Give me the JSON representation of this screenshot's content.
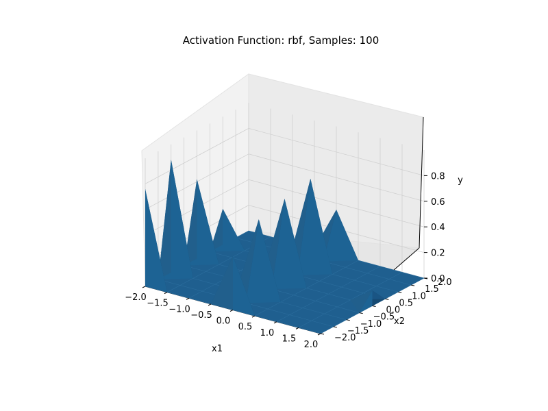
{
  "chart_data": {
    "type": "surface3d",
    "title": "Activation Function: rbf, Samples: 100",
    "xlabel": "x1",
    "ylabel": "x2",
    "zlabel": "y",
    "x_ticks": [
      "−2.0",
      "−1.5",
      "−1.0",
      "−0.5",
      "0.0",
      "0.5",
      "1.0",
      "1.5",
      "2.0"
    ],
    "y_ticks": [
      "−2.0",
      "−1.5",
      "−1.0",
      "−0.5",
      "0.0",
      "0.5",
      "1.0",
      "1.5",
      "2.0"
    ],
    "z_ticks": [
      "0.0",
      "0.2",
      "0.4",
      "0.6",
      "0.8"
    ],
    "xlim": [
      -2.0,
      2.0
    ],
    "ylim": [
      -2.0,
      2.0
    ],
    "zlim": [
      0.0,
      1.0
    ],
    "surface_color": "#1f5f8f",
    "grid": true,
    "peaks": [
      {
        "x1": -2.0,
        "x2": -2.0,
        "y": 0.76
      },
      {
        "x1": -2.0,
        "x2": -1.0,
        "y": 0.88
      },
      {
        "x1": -2.0,
        "x2": 0.0,
        "y": 0.62
      },
      {
        "x1": -2.0,
        "x2": 1.0,
        "y": 0.28
      },
      {
        "x1": 0.0,
        "x2": -2.0,
        "y": 0.42
      },
      {
        "x1": 0.0,
        "x2": -1.0,
        "y": 0.6
      },
      {
        "x1": 0.0,
        "x2": 0.0,
        "y": 0.65
      },
      {
        "x1": 0.0,
        "x2": 1.0,
        "y": 0.7
      },
      {
        "x1": 0.0,
        "x2": 2.0,
        "y": 0.35
      },
      {
        "x1": 2.0,
        "x2": 0.0,
        "y": 0.12
      }
    ]
  }
}
